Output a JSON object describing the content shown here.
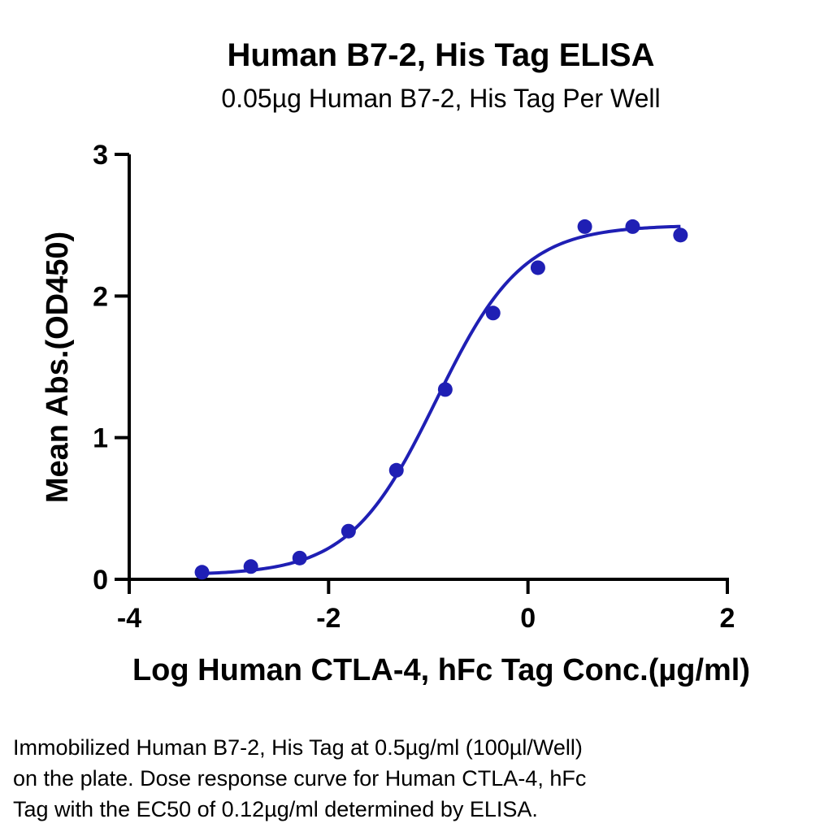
{
  "chart_data": {
    "type": "scatter",
    "title": "Human B7-2, His Tag ELISA",
    "subtitle": "0.05µg Human B7-2, His Tag Per Well",
    "xlabel": "Log Human CTLA-4, hFc Tag Conc.(µg/ml)",
    "ylabel": "Mean Abs.(OD450)",
    "xlim": [
      -4,
      2
    ],
    "ylim": [
      0,
      3
    ],
    "x_ticks": [
      -4,
      -2,
      0,
      2
    ],
    "y_ticks": [
      0,
      1,
      2,
      3
    ],
    "x_tick_labels": [
      "-4",
      "-2",
      "0",
      "2"
    ],
    "y_tick_labels": [
      "0",
      "1",
      "2",
      "3"
    ],
    "grid": false,
    "series": [
      {
        "x": [
          -3.27,
          -2.78,
          -2.29,
          -1.8,
          -1.32,
          -0.83,
          -0.35,
          0.1,
          0.57,
          1.05,
          1.53
        ],
        "y": [
          0.05,
          0.09,
          0.15,
          0.34,
          0.77,
          1.34,
          1.88,
          2.2,
          2.49,
          2.49,
          2.43
        ],
        "color": "#1f1fb4"
      }
    ],
    "fit_curve": {
      "model": "4PL",
      "bottom": 0.03,
      "top": 2.5,
      "log_ec50": -0.92,
      "hill_slope": 1.0,
      "x_range": [
        -3.27,
        1.53
      ],
      "color": "#1f1fb4"
    }
  },
  "caption_lines": [
    "Immobilized Human B7-2, His Tag at 0.5µg/ml (100µl/Well)",
    "on the plate. Dose response curve for Human CTLA-4, hFc",
    "Tag with the EC50 of 0.12µg/ml determined by ELISA."
  ]
}
